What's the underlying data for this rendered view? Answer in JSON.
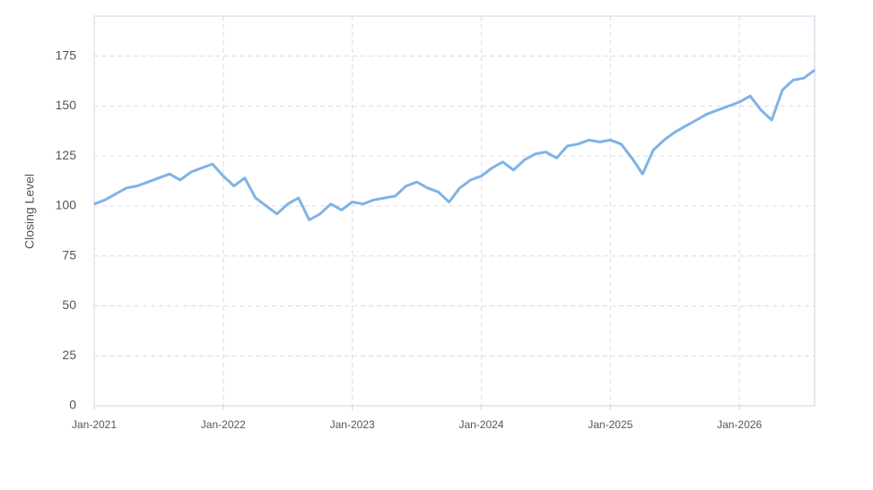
{
  "chart_data": {
    "type": "line",
    "y_label": "Closing Level",
    "x": [
      "2021-01",
      "2021-02",
      "2021-03",
      "2021-04",
      "2021-05",
      "2021-06",
      "2021-07",
      "2021-08",
      "2021-09",
      "2021-10",
      "2021-11",
      "2021-12",
      "2022-01",
      "2022-02",
      "2022-03",
      "2022-04",
      "2022-05",
      "2022-06",
      "2022-07",
      "2022-08",
      "2022-09",
      "2022-10",
      "2022-11",
      "2022-12",
      "2023-01",
      "2023-02",
      "2023-03",
      "2023-04",
      "2023-05",
      "2023-06",
      "2023-07",
      "2023-08",
      "2023-09",
      "2023-10",
      "2023-11",
      "2023-12",
      "2024-01",
      "2024-02",
      "2024-03",
      "2024-04",
      "2024-05",
      "2024-06",
      "2024-07",
      "2024-08",
      "2024-09",
      "2024-10",
      "2024-11",
      "2024-12",
      "2025-01",
      "2025-02",
      "2025-03",
      "2025-04",
      "2025-05",
      "2025-06",
      "2025-07",
      "2025-08",
      "2025-09",
      "2025-10",
      "2025-11",
      "2025-12",
      "2026-01",
      "2026-02",
      "2026-03",
      "2026-04",
      "2026-05",
      "2026-06",
      "2026-07",
      "2026-08"
    ],
    "series": [
      {
        "color": "#7fb3e5",
        "values": [
          101,
          103,
          106,
          109,
          110,
          112,
          114,
          116,
          113,
          117,
          119,
          121,
          115,
          110,
          114,
          104,
          100,
          96,
          101,
          104,
          93,
          96,
          101,
          98,
          102,
          101,
          103,
          104,
          105,
          110,
          112,
          109,
          107,
          102,
          109,
          113,
          115,
          119,
          122,
          118,
          123,
          126,
          127,
          124,
          130,
          131,
          133,
          132,
          133,
          131,
          124,
          116,
          128,
          133,
          137,
          140,
          143,
          146,
          148,
          150,
          152,
          155,
          148,
          143,
          158,
          163,
          164,
          168
        ]
      }
    ],
    "xlim": [
      "2021-01",
      "2026-08"
    ],
    "xticks": [
      {
        "value": "2021-01",
        "label": "Jan-2021"
      },
      {
        "value": "2022-01",
        "label": "Jan-2022"
      },
      {
        "value": "2023-01",
        "label": "Jan-2023"
      },
      {
        "value": "2024-01",
        "label": "Jan-2024"
      },
      {
        "value": "2025-01",
        "label": "Jan-2025"
      },
      {
        "value": "2026-01",
        "label": "Jan-2026"
      }
    ],
    "ylim": [
      0,
      195
    ],
    "yticks": [
      0,
      25,
      50,
      75,
      100,
      125,
      150,
      175
    ],
    "grid": true
  }
}
